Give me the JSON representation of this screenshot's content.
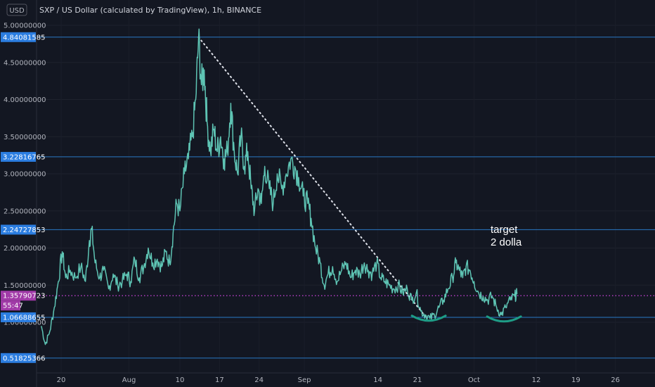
{
  "currency_label": "USD",
  "title": "SXP / US Dollar (calculated by TradingView), 1h, BINANCE",
  "annotation": {
    "line1": "target",
    "line2": "2 dolla"
  },
  "colors": {
    "background": "#131722",
    "price": "#5ec4b4",
    "hline": "#2a78c6",
    "hline_label": "#2b7de0",
    "trend": "#e0e3eb",
    "current": "#a13aa8",
    "arc": "#1e9c86"
  },
  "chart_data": {
    "type": "line",
    "title": "SXP / US Dollar (calculated by TradingView), 1h, BINANCE",
    "xlabel": "",
    "ylabel": "",
    "ylim": [
      0.4,
      5.15
    ],
    "y_ticks": [
      "5.00000000",
      "4.50000000",
      "4.00000000",
      "3.50000000",
      "3.00000000",
      "2.50000000",
      "2.00000000",
      "1.50000000",
      "1.00000000"
    ],
    "x_ticks": [
      {
        "label": "20",
        "day": 20
      },
      {
        "label": "Aug",
        "day": 32
      },
      {
        "label": "10",
        "day": 41
      },
      {
        "label": "17",
        "day": 48
      },
      {
        "label": "24",
        "day": 55
      },
      {
        "label": "Sep",
        "day": 63
      },
      {
        "label": "14",
        "day": 76
      },
      {
        "label": "21",
        "day": 83
      },
      {
        "label": "Oct",
        "day": 93
      },
      {
        "label": "12",
        "day": 104
      },
      {
        "label": "19",
        "day": 111
      },
      {
        "label": "26",
        "day": 118
      }
    ],
    "x_range_days": [
      16.0,
      122.0
    ],
    "series": [
      {
        "name": "",
        "points": [
          [
            16.5,
            0.95
          ],
          [
            17.2,
            0.7
          ],
          [
            18.0,
            0.88
          ],
          [
            18.8,
            1.2
          ],
          [
            19.5,
            1.55
          ],
          [
            20.2,
            1.95
          ],
          [
            20.8,
            1.6
          ],
          [
            21.6,
            1.7
          ],
          [
            22.5,
            1.6
          ],
          [
            23.5,
            1.75
          ],
          [
            24.3,
            1.55
          ],
          [
            25.0,
            2.1
          ],
          [
            25.4,
            2.25
          ],
          [
            26.0,
            1.8
          ],
          [
            26.8,
            1.6
          ],
          [
            27.5,
            1.7
          ],
          [
            28.4,
            1.45
          ],
          [
            29.2,
            1.65
          ],
          [
            30.0,
            1.5
          ],
          [
            30.8,
            1.55
          ],
          [
            31.6,
            1.65
          ],
          [
            32.3,
            1.55
          ],
          [
            33.0,
            1.85
          ],
          [
            33.8,
            1.6
          ],
          [
            34.6,
            1.75
          ],
          [
            35.4,
            2.0
          ],
          [
            36.2,
            1.8
          ],
          [
            37.0,
            1.85
          ],
          [
            37.8,
            1.75
          ],
          [
            38.5,
            1.95
          ],
          [
            39.2,
            1.8
          ],
          [
            39.8,
            2.2
          ],
          [
            40.4,
            2.6
          ],
          [
            41.0,
            2.5
          ],
          [
            41.8,
            3.0
          ],
          [
            42.5,
            3.2
          ],
          [
            43.2,
            3.5
          ],
          [
            43.8,
            4.0
          ],
          [
            44.3,
            4.84
          ],
          [
            44.8,
            4.2
          ],
          [
            45.3,
            4.4
          ],
          [
            45.8,
            3.7
          ],
          [
            46.4,
            3.3
          ],
          [
            47.0,
            3.6
          ],
          [
            47.6,
            3.3
          ],
          [
            48.2,
            3.5
          ],
          [
            48.8,
            3.2
          ],
          [
            49.4,
            3.3
          ],
          [
            50.0,
            3.95
          ],
          [
            50.6,
            3.3
          ],
          [
            51.2,
            3.0
          ],
          [
            51.8,
            3.5
          ],
          [
            52.4,
            3.1
          ],
          [
            53.0,
            3.3
          ],
          [
            53.6,
            2.8
          ],
          [
            54.2,
            2.5
          ],
          [
            54.8,
            2.8
          ],
          [
            55.4,
            2.6
          ],
          [
            56.0,
            3.1
          ],
          [
            56.8,
            2.8
          ],
          [
            57.5,
            2.6
          ],
          [
            58.2,
            3.0
          ],
          [
            59.0,
            2.8
          ],
          [
            59.8,
            3.0
          ],
          [
            60.6,
            3.2
          ],
          [
            61.3,
            3.1
          ],
          [
            62.0,
            2.95
          ],
          [
            62.8,
            2.7
          ],
          [
            63.6,
            2.6
          ],
          [
            64.2,
            2.4
          ],
          [
            65.0,
            2.0
          ],
          [
            65.8,
            1.8
          ],
          [
            66.5,
            1.5
          ],
          [
            67.2,
            1.65
          ],
          [
            68.0,
            1.75
          ],
          [
            68.8,
            1.55
          ],
          [
            69.6,
            1.7
          ],
          [
            70.4,
            1.8
          ],
          [
            71.2,
            1.6
          ],
          [
            72.0,
            1.7
          ],
          [
            72.8,
            1.65
          ],
          [
            73.6,
            1.8
          ],
          [
            74.3,
            1.7
          ],
          [
            75.0,
            1.65
          ],
          [
            75.8,
            1.8
          ],
          [
            76.5,
            1.6
          ],
          [
            77.2,
            1.55
          ],
          [
            78.0,
            1.5
          ],
          [
            78.8,
            1.45
          ],
          [
            79.6,
            1.5
          ],
          [
            80.4,
            1.4
          ],
          [
            81.2,
            1.45
          ],
          [
            82.0,
            1.3
          ],
          [
            82.8,
            1.4
          ],
          [
            83.6,
            1.15
          ],
          [
            84.4,
            1.1
          ],
          [
            85.2,
            1.05
          ],
          [
            86.0,
            1.1
          ],
          [
            86.8,
            1.2
          ],
          [
            87.6,
            1.3
          ],
          [
            88.4,
            1.45
          ],
          [
            89.2,
            1.6
          ],
          [
            89.8,
            1.8
          ],
          [
            90.4,
            1.7
          ],
          [
            91.0,
            1.6
          ],
          [
            91.6,
            1.75
          ],
          [
            92.3,
            1.7
          ],
          [
            93.0,
            1.55
          ],
          [
            93.8,
            1.4
          ],
          [
            94.6,
            1.35
          ],
          [
            95.4,
            1.3
          ],
          [
            96.2,
            1.35
          ],
          [
            97.0,
            1.2
          ],
          [
            97.8,
            1.1
          ],
          [
            98.6,
            1.2
          ],
          [
            99.4,
            1.3
          ],
          [
            100.2,
            1.35
          ],
          [
            100.6,
            1.38
          ]
        ]
      }
    ],
    "horizontal_levels": [
      "4.84081585",
      "3.22816765",
      "2.24727853",
      "1.06688655",
      "0.51825366"
    ],
    "current_price": "1.35790723",
    "countdown": "55:47",
    "trendline": {
      "from": [
        44.3,
        4.84
      ],
      "to": [
        84.4,
        1.08
      ]
    },
    "arcs": [
      {
        "center_day": 85.0,
        "value": 1.05
      },
      {
        "center_day": 98.3,
        "value": 1.04
      }
    ]
  }
}
